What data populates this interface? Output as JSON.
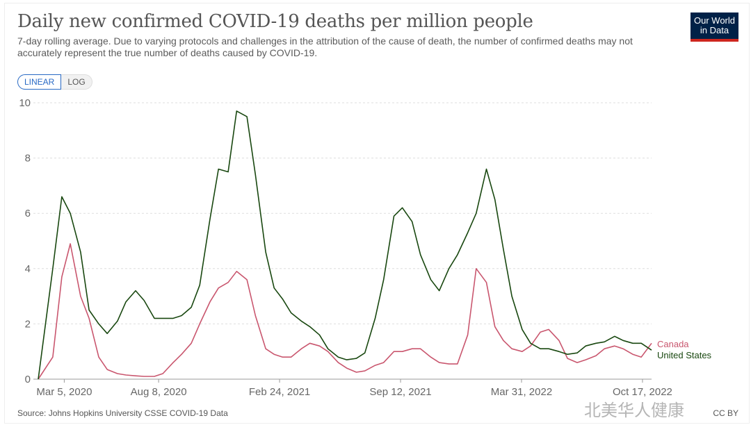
{
  "header": {
    "title": "Daily new confirmed COVID-19 deaths per million people",
    "subtitle": "7-day rolling average. Due to varying protocols and challenges in the attribution of the cause of death, the number of confirmed deaths may not accurately represent the true number of deaths caused by COVID-19.",
    "logo": "Our World in Data"
  },
  "scale_toggle": {
    "linear": "LINEAR",
    "log": "LOG",
    "selected": "LINEAR"
  },
  "footer": {
    "source": "Source: Johns Hopkins University CSSE COVID-19 Data",
    "license": "CC BY"
  },
  "watermark": "北美华人健康",
  "colors": {
    "Canada": "#c9566e",
    "United States": "#18470f",
    "logo_bg": "#002147",
    "logo_bar": "#ce261e",
    "accent": "#2769c4"
  },
  "chart_data": {
    "type": "line",
    "title": "Daily new confirmed COVID-19 deaths per million people",
    "xlim": [
      "2020-01-22",
      "2022-11-01"
    ],
    "ylim": [
      0,
      10
    ],
    "yticks": [
      0,
      2,
      4,
      6,
      8,
      10
    ],
    "xticks": [
      "Mar 5, 2020",
      "Aug 8, 2020",
      "Feb 24, 2021",
      "Sep 12, 2021",
      "Mar 31, 2022",
      "Oct 17, 2022"
    ],
    "xtick_dates": [
      "2020-03-05",
      "2020-08-08",
      "2021-02-24",
      "2021-09-12",
      "2022-03-31",
      "2022-10-17"
    ],
    "grid": "horizontal dashed",
    "legend": "right, labels at line ends",
    "x": [
      "2020-01-22",
      "2020-02-15",
      "2020-03-01",
      "2020-03-15",
      "2020-04-01",
      "2020-04-15",
      "2020-05-01",
      "2020-05-15",
      "2020-06-01",
      "2020-06-15",
      "2020-07-01",
      "2020-07-15",
      "2020-08-01",
      "2020-08-15",
      "2020-09-01",
      "2020-09-15",
      "2020-10-01",
      "2020-10-15",
      "2020-11-01",
      "2020-11-15",
      "2020-12-01",
      "2020-12-15",
      "2021-01-01",
      "2021-01-15",
      "2021-02-01",
      "2021-02-15",
      "2021-03-01",
      "2021-03-15",
      "2021-04-01",
      "2021-04-15",
      "2021-05-01",
      "2021-05-15",
      "2021-06-01",
      "2021-06-15",
      "2021-07-01",
      "2021-07-15",
      "2021-08-01",
      "2021-08-15",
      "2021-09-01",
      "2021-09-15",
      "2021-10-01",
      "2021-10-15",
      "2021-11-01",
      "2021-11-15",
      "2021-12-01",
      "2021-12-15",
      "2022-01-01",
      "2022-01-15",
      "2022-02-01",
      "2022-02-15",
      "2022-03-01",
      "2022-03-15",
      "2022-04-01",
      "2022-04-15",
      "2022-05-01",
      "2022-05-15",
      "2022-06-01",
      "2022-06-15",
      "2022-07-01",
      "2022-07-15",
      "2022-08-01",
      "2022-08-15",
      "2022-09-01",
      "2022-09-15",
      "2022-10-01",
      "2022-10-15",
      "2022-11-01"
    ],
    "series": [
      {
        "name": "Canada",
        "values": [
          0,
          0.8,
          3.7,
          4.9,
          3.0,
          2.2,
          0.8,
          0.35,
          0.2,
          0.15,
          0.12,
          0.1,
          0.1,
          0.2,
          0.6,
          0.9,
          1.3,
          2.0,
          2.8,
          3.3,
          3.5,
          3.9,
          3.6,
          2.3,
          1.1,
          0.9,
          0.8,
          0.8,
          1.1,
          1.3,
          1.2,
          1.0,
          0.6,
          0.4,
          0.25,
          0.3,
          0.5,
          0.6,
          1.0,
          1.0,
          1.1,
          1.1,
          0.8,
          0.6,
          0.55,
          0.55,
          1.6,
          4.0,
          3.5,
          1.9,
          1.4,
          1.1,
          1.0,
          1.2,
          1.7,
          1.8,
          1.4,
          0.75,
          0.6,
          0.7,
          0.85,
          1.1,
          1.2,
          1.1,
          0.9,
          0.8,
          1.3
        ]
      },
      {
        "name": "United States",
        "values": [
          0,
          4.0,
          6.6,
          6.0,
          4.6,
          2.5,
          2.0,
          1.65,
          2.1,
          2.8,
          3.2,
          2.85,
          2.2,
          2.2,
          2.2,
          2.3,
          2.6,
          3.4,
          5.8,
          7.6,
          7.5,
          9.7,
          9.5,
          7.4,
          4.6,
          3.3,
          2.9,
          2.4,
          2.1,
          1.9,
          1.6,
          1.1,
          0.8,
          0.7,
          0.75,
          0.95,
          2.2,
          3.6,
          5.9,
          6.2,
          5.7,
          4.5,
          3.6,
          3.2,
          4.0,
          4.5,
          5.3,
          6.0,
          7.6,
          6.5,
          4.7,
          3.0,
          1.8,
          1.3,
          1.1,
          1.1,
          1.0,
          0.9,
          0.95,
          1.2,
          1.3,
          1.35,
          1.55,
          1.4,
          1.3,
          1.3,
          1.05
        ]
      }
    ]
  }
}
